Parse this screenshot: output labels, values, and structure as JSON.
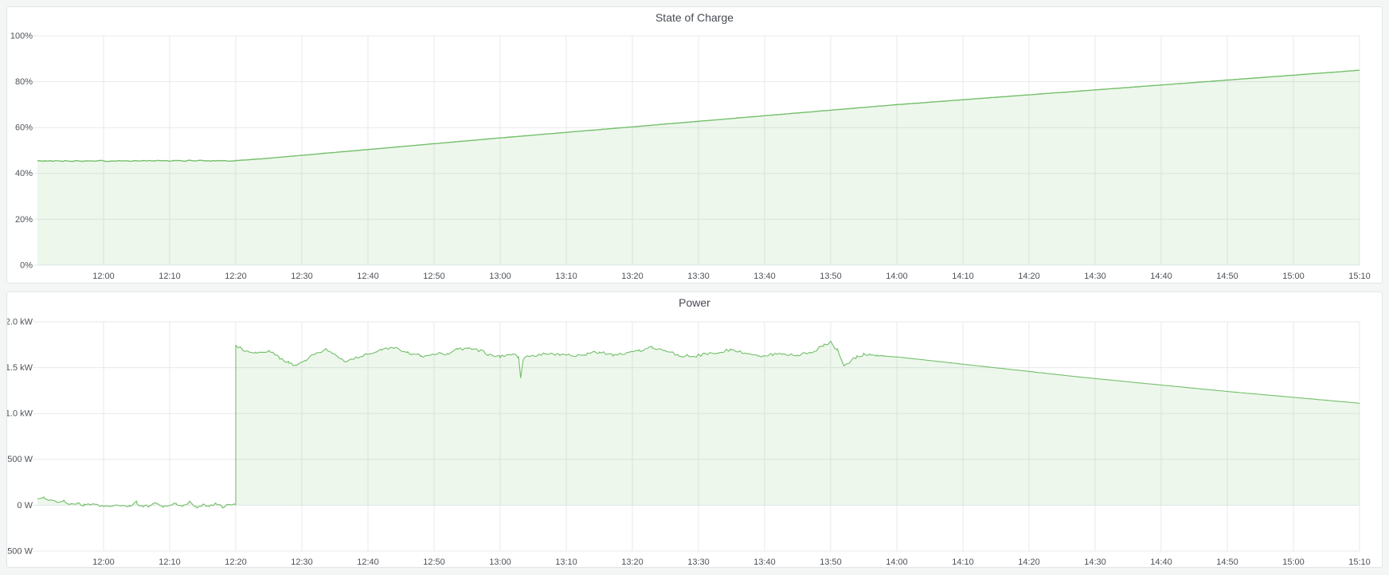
{
  "page": {
    "background_color": "#f4f5f5",
    "panel_background": "#ffffff",
    "panel_border_color": "#e2e4e8",
    "accent_green": "#73bf69"
  },
  "chart_data": [
    {
      "type": "area",
      "title": "State of Charge",
      "y_unit": "%",
      "ylim": [
        0,
        100
      ],
      "y_tick_values": [
        0,
        20,
        40,
        60,
        80,
        100
      ],
      "y_tick_labels": [
        "0%",
        "20%",
        "40%",
        "60%",
        "80%",
        "100%"
      ],
      "x_window": [
        0,
        200
      ],
      "x_window_times": [
        "11:50",
        "15:10"
      ],
      "x_tick_minutes": [
        10,
        20,
        30,
        40,
        50,
        60,
        70,
        80,
        90,
        100,
        110,
        120,
        130,
        140,
        150,
        160,
        170,
        180,
        190,
        200
      ],
      "x_tick_labels": [
        "12:00",
        "12:10",
        "12:20",
        "12:30",
        "12:40",
        "12:50",
        "13:00",
        "13:10",
        "13:20",
        "13:30",
        "13:40",
        "13:50",
        "14:00",
        "14:10",
        "14:20",
        "14:30",
        "14:40",
        "14:50",
        "15:00",
        "15:10"
      ],
      "grid": true,
      "legend_position": "none",
      "line_color": "#73bf69",
      "fill_color": "rgba(115,191,105,0.13)",
      "summary": "Flat at ~45.5% until 12:20, then near-linear charge up to ~85% at 15:10",
      "series": [
        {
          "name": "State of Charge",
          "segments": [
            {
              "t": [
                0,
                30
              ],
              "points": [
                [
                  0,
                  45.4
                ],
                [
                  30,
                  45.6
                ]
              ],
              "noise": 0.3,
              "seed": 3
            },
            {
              "t": [
                30,
                200
              ],
              "points": [
                [
                  30,
                  45.6
                ],
                [
                  34,
                  46.4
                ],
                [
                  70,
                  55.5
                ],
                [
                  130,
                  70
                ],
                [
                  200,
                  85
                ]
              ],
              "noise": 0.05,
              "seed": 4
            }
          ]
        }
      ]
    },
    {
      "type": "area",
      "title": "Power",
      "y_unit": "W",
      "ylim": [
        -500,
        2000
      ],
      "y_tick_values": [
        -500,
        0,
        500,
        1000,
        1500,
        2000
      ],
      "y_tick_labels": [
        "-500 W",
        "0 W",
        "500 W",
        "1.0 kW",
        "1.5 kW",
        "2.0 kW"
      ],
      "x_window": [
        0,
        200
      ],
      "x_window_times": [
        "11:50",
        "15:10"
      ],
      "x_tick_minutes": [
        10,
        20,
        30,
        40,
        50,
        60,
        70,
        80,
        90,
        100,
        110,
        120,
        130,
        140,
        150,
        160,
        170,
        180,
        190,
        200
      ],
      "x_tick_labels": [
        "12:00",
        "12:10",
        "12:20",
        "12:30",
        "12:40",
        "12:50",
        "13:00",
        "13:10",
        "13:20",
        "13:30",
        "13:40",
        "13:50",
        "14:00",
        "14:10",
        "14:20",
        "14:30",
        "14:40",
        "14:50",
        "15:00",
        "15:10"
      ],
      "grid": true,
      "legend_position": "none",
      "line_color": "#73bf69",
      "fill_color": "rgba(115,191,105,0.13)",
      "summary": "Noisy around 0 W until 12:20, steps up to ~1.75 kW, fluctuates 1.5-1.78 kW (brief dip to ~1.38 kW at 13:03, peak 1.78 kW at 13:50) until 14:00, then smooth decline to ~1.11 kW at 15:10",
      "series": [
        {
          "name": "Power",
          "segments": [
            {
              "t": [
                0,
                30
              ],
              "points": [
                [
                  0,
                  70
                ],
                [
                  1,
                  75
                ],
                [
                  2,
                  55
                ],
                [
                  3,
                  30
                ],
                [
                  4,
                  40
                ],
                [
                  5,
                  10
                ],
                [
                  6,
                  20
                ],
                [
                  7,
                  0
                ],
                [
                  8,
                  10
                ],
                [
                  10,
                  -10
                ],
                [
                  12,
                  5
                ],
                [
                  14,
                  -15
                ],
                [
                  15,
                  30
                ],
                [
                  16,
                  -20
                ],
                [
                  17,
                  5
                ],
                [
                  18,
                  25
                ],
                [
                  19,
                  -15
                ],
                [
                  20,
                  0
                ],
                [
                  21,
                  20
                ],
                [
                  22,
                  -20
                ],
                [
                  23,
                  40
                ],
                [
                  24,
                  -25
                ],
                [
                  25,
                  10
                ],
                [
                  26,
                  -15
                ],
                [
                  27,
                  30
                ],
                [
                  28,
                  -20
                ],
                [
                  29,
                  10
                ],
                [
                  30,
                  -5
                ]
              ],
              "noise": 20,
              "seed": 7
            },
            {
              "t": [
                30,
                128
              ],
              "points": [
                [
                  30,
                  1755
                ],
                [
                  31,
                  1690
                ],
                [
                  33,
                  1665
                ],
                [
                  35,
                  1680
                ],
                [
                  36.5,
                  1620
                ],
                [
                  38,
                  1555
                ],
                [
                  39,
                  1525
                ],
                [
                  40.5,
                  1580
                ],
                [
                  42,
                  1645
                ],
                [
                  43.5,
                  1700
                ],
                [
                  45,
                  1650
                ],
                [
                  46.5,
                  1565
                ],
                [
                  48,
                  1600
                ],
                [
                  50,
                  1645
                ],
                [
                  52,
                  1700
                ],
                [
                  54,
                  1720
                ],
                [
                  56,
                  1660
                ],
                [
                  58,
                  1630
                ],
                [
                  60,
                  1645
                ],
                [
                  62,
                  1655
                ],
                [
                  63.5,
                  1690
                ],
                [
                  65,
                  1720
                ],
                [
                  66.5,
                  1700
                ],
                [
                  68,
                  1650
                ],
                [
                  70,
                  1625
                ],
                [
                  72,
                  1645
                ],
                [
                  72.8,
                  1600
                ],
                [
                  73.1,
                  1380
                ],
                [
                  73.5,
                  1605
                ],
                [
                  75,
                  1635
                ],
                [
                  77,
                  1655
                ],
                [
                  79,
                  1645
                ],
                [
                  81,
                  1630
                ],
                [
                  83,
                  1650
                ],
                [
                  85,
                  1665
                ],
                [
                  87,
                  1640
                ],
                [
                  89,
                  1655
                ],
                [
                  91,
                  1685
                ],
                [
                  93,
                  1720
                ],
                [
                  95,
                  1680
                ],
                [
                  97,
                  1640
                ],
                [
                  99,
                  1620
                ],
                [
                  101,
                  1645
                ],
                [
                  103,
                  1665
                ],
                [
                  105,
                  1700
                ],
                [
                  107,
                  1660
                ],
                [
                  109,
                  1625
                ],
                [
                  111,
                  1645
                ],
                [
                  113,
                  1655
                ],
                [
                  115,
                  1635
                ],
                [
                  117,
                  1660
                ],
                [
                  119,
                  1745
                ],
                [
                  120,
                  1778
                ],
                [
                  121,
                  1690
                ],
                [
                  122,
                  1513
                ],
                [
                  123,
                  1565
                ],
                [
                  124,
                  1625
                ],
                [
                  125,
                  1645
                ],
                [
                  126,
                  1632
                ],
                [
                  127,
                  1628
                ],
                [
                  128,
                  1625
                ]
              ],
              "noise": 22,
              "seed": 13
            },
            {
              "t": [
                128,
                200
              ],
              "points": [
                [
                  128,
                  1625
                ],
                [
                  130,
                  1617
                ],
                [
                  158,
                  1395
                ],
                [
                  180,
                  1240
                ],
                [
                  200,
                  1112
                ]
              ],
              "noise": 1,
              "seed": 5
            }
          ]
        }
      ]
    }
  ]
}
